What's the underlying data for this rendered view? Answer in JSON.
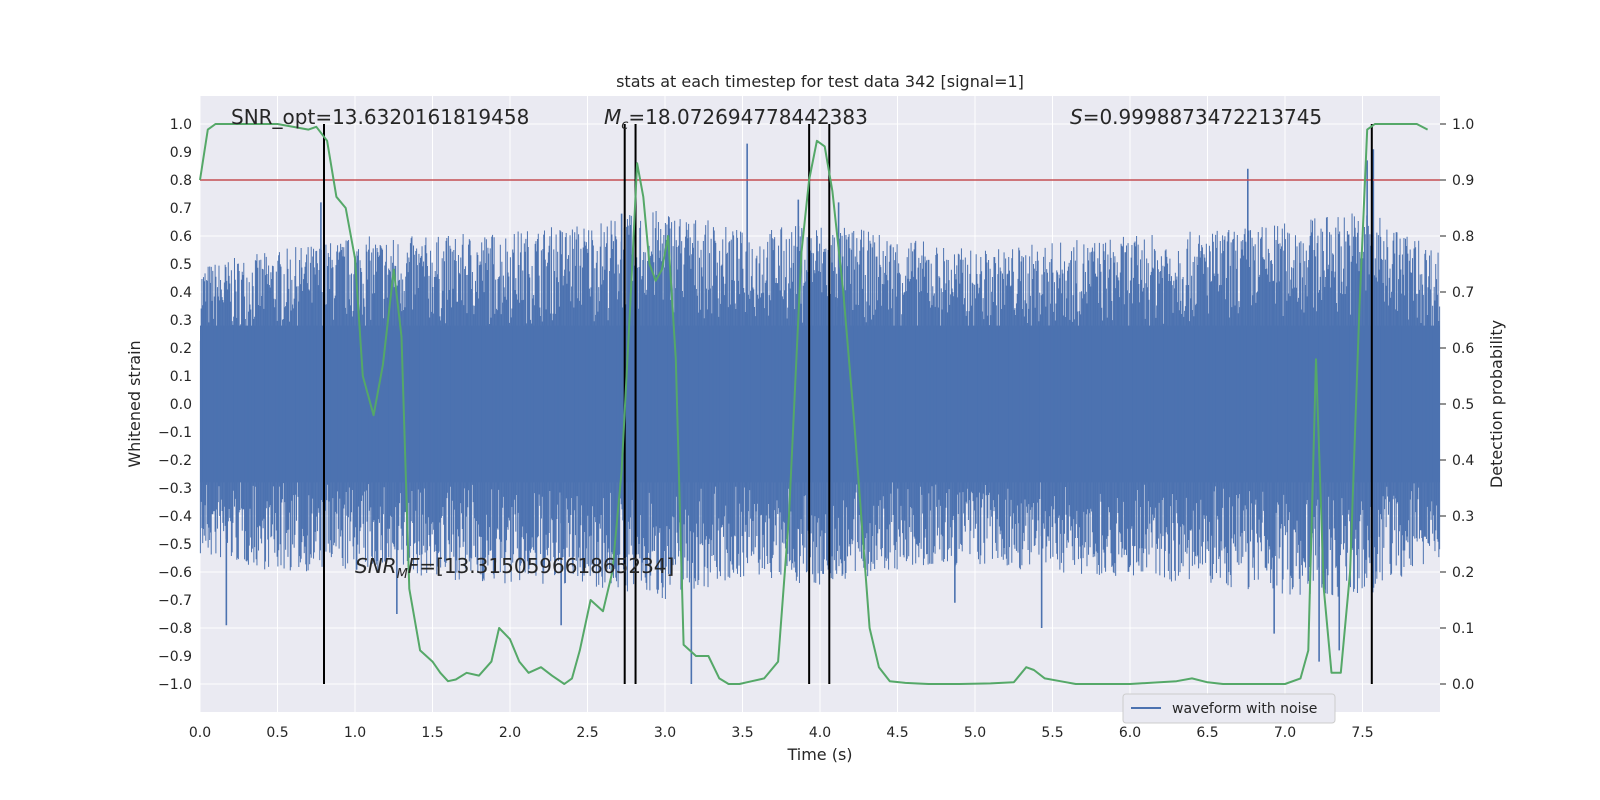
{
  "chart_data": {
    "type": "line",
    "title": "stats at each timestep for test data 342 [signal=1]",
    "xlabel": "Time (s)",
    "ylabel": "Whitened strain",
    "y2label": "Detection probability",
    "xlim": [
      0.0,
      8.0
    ],
    "ylim": [
      -1.1,
      1.1
    ],
    "y2lim": [
      -0.05,
      1.05
    ],
    "xticks": [
      "0.0",
      "0.5",
      "1.0",
      "1.5",
      "2.0",
      "2.5",
      "3.0",
      "3.5",
      "4.0",
      "4.5",
      "5.0",
      "5.5",
      "6.0",
      "6.5",
      "7.0",
      "7.5"
    ],
    "yticks": [
      "1.0",
      "0.9",
      "0.8",
      "0.7",
      "0.6",
      "0.5",
      "0.4",
      "0.3",
      "0.2",
      "0.1",
      "0.0",
      "-0.1",
      "-0.2",
      "-0.3",
      "-0.4",
      "-0.5",
      "-0.6",
      "-0.7",
      "-0.8",
      "-0.9",
      "-1.0"
    ],
    "y2ticks": [
      "1.0",
      "0.9",
      "0.8",
      "0.7",
      "0.6",
      "0.5",
      "0.4",
      "0.3",
      "0.2",
      "0.1",
      "0.0"
    ],
    "legend": {
      "label": "waveform with noise",
      "placement": "lower-right"
    },
    "annotations": {
      "snr_opt": "SNR_opt=13.6320161819458",
      "mc_symbol": "M",
      "mc_sub": "c",
      "mc_value": "=18.072694778442383",
      "s_symbol": "S",
      "s_value": "=0.9998873472213745",
      "snrmf_symbol": "SNR",
      "snrmf_sub": "M",
      "snrmf_f": "F",
      "snrmf_value": "=[13.315059661865234]"
    },
    "threshold": 0.9,
    "vertical_lines": [
      0.8,
      2.74,
      2.81,
      3.93,
      4.06,
      7.56
    ],
    "strain_envelope": {
      "x": [
        0.0,
        0.5,
        1.0,
        1.5,
        2.0,
        2.5,
        3.0,
        3.5,
        4.0,
        4.5,
        5.0,
        5.5,
        6.0,
        6.5,
        7.0,
        7.5,
        8.0
      ],
      "high": [
        0.5,
        0.55,
        0.6,
        0.6,
        0.62,
        0.65,
        0.7,
        0.62,
        0.65,
        0.6,
        0.55,
        0.58,
        0.6,
        0.62,
        0.65,
        0.7,
        0.55
      ],
      "low": [
        -0.55,
        -0.6,
        -0.6,
        -0.62,
        -0.65,
        -0.65,
        -0.7,
        -0.62,
        -0.65,
        -0.6,
        -0.58,
        -0.6,
        -0.62,
        -0.65,
        -0.68,
        -0.7,
        -0.55
      ]
    },
    "strain_spikes": [
      {
        "x": 0.17,
        "y": -0.79
      },
      {
        "x": 0.78,
        "y": 0.72
      },
      {
        "x": 1.27,
        "y": -0.75
      },
      {
        "x": 2.33,
        "y": -0.79
      },
      {
        "x": 3.17,
        "y": -1.0
      },
      {
        "x": 3.53,
        "y": 0.93
      },
      {
        "x": 3.86,
        "y": 0.73
      },
      {
        "x": 4.87,
        "y": -0.71
      },
      {
        "x": 5.43,
        "y": -0.8
      },
      {
        "x": 6.76,
        "y": 0.84
      },
      {
        "x": 6.93,
        "y": -0.82
      },
      {
        "x": 7.22,
        "y": -0.92
      },
      {
        "x": 7.35,
        "y": -0.88
      },
      {
        "x": 7.53,
        "y": 0.87
      },
      {
        "x": 7.57,
        "y": 0.91
      },
      {
        "x": 2.72,
        "y": 0.68
      },
      {
        "x": 4.12,
        "y": 0.72
      }
    ],
    "series": [
      {
        "name": "Detection probability",
        "axis": "right",
        "color": "#55a868",
        "x": [
          0.0,
          0.05,
          0.1,
          0.3,
          0.5,
          0.7,
          0.75,
          0.82,
          0.88,
          0.94,
          1.0,
          1.05,
          1.12,
          1.18,
          1.25,
          1.3,
          1.35,
          1.42,
          1.5,
          1.55,
          1.6,
          1.65,
          1.72,
          1.8,
          1.88,
          1.93,
          2.0,
          2.06,
          2.12,
          2.2,
          2.27,
          2.35,
          2.4,
          2.45,
          2.52,
          2.6,
          2.66,
          2.72,
          2.78,
          2.82,
          2.86,
          2.9,
          2.94,
          2.98,
          3.02,
          3.07,
          3.12,
          3.2,
          3.28,
          3.35,
          3.41,
          3.48,
          3.56,
          3.64,
          3.73,
          3.8,
          3.88,
          3.93,
          3.98,
          4.03,
          4.08,
          4.15,
          4.22,
          4.32,
          4.38,
          4.45,
          4.55,
          4.7,
          4.9,
          5.1,
          5.25,
          5.33,
          5.38,
          5.45,
          5.55,
          5.65,
          5.8,
          6.0,
          6.3,
          6.4,
          6.5,
          6.6,
          6.8,
          7.0,
          7.1,
          7.15,
          7.2,
          7.25,
          7.3,
          7.36,
          7.42,
          7.48,
          7.53,
          7.58,
          7.62,
          7.66,
          7.7,
          7.78,
          7.85,
          7.92
        ],
        "y": [
          0.9,
          0.99,
          1.0,
          1.0,
          1.0,
          0.99,
          0.995,
          0.97,
          0.87,
          0.85,
          0.76,
          0.55,
          0.48,
          0.57,
          0.74,
          0.62,
          0.17,
          0.06,
          0.04,
          0.02,
          0.005,
          0.008,
          0.02,
          0.015,
          0.04,
          0.1,
          0.08,
          0.04,
          0.02,
          0.03,
          0.015,
          0.0,
          0.01,
          0.06,
          0.15,
          0.13,
          0.2,
          0.38,
          0.7,
          0.93,
          0.87,
          0.75,
          0.72,
          0.74,
          0.8,
          0.58,
          0.07,
          0.05,
          0.05,
          0.01,
          0.0,
          0.0,
          0.005,
          0.01,
          0.04,
          0.3,
          0.77,
          0.9,
          0.97,
          0.96,
          0.88,
          0.7,
          0.47,
          0.1,
          0.03,
          0.005,
          0.002,
          0.0,
          0.0,
          0.001,
          0.003,
          0.03,
          0.025,
          0.01,
          0.005,
          0.0,
          0.0,
          0.0,
          0.005,
          0.01,
          0.003,
          0.0,
          0.0,
          0.0,
          0.01,
          0.06,
          0.58,
          0.17,
          0.02,
          0.02,
          0.2,
          0.67,
          0.99,
          1.0,
          1.0,
          1.0,
          1.0,
          1.0,
          1.0,
          0.99
        ]
      }
    ]
  }
}
